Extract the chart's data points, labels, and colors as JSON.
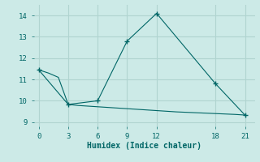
{
  "xlabel": "Humidex (Indice chaleur)",
  "bg_color": "#cceae7",
  "grid_color": "#b0d4d0",
  "line_color": "#006666",
  "line1_x": [
    0,
    1,
    2,
    3,
    4,
    5,
    6,
    7,
    8,
    9,
    10,
    11,
    12,
    13,
    14,
    15,
    16,
    17,
    18,
    19,
    20,
    21
  ],
  "line1_y": [
    11.45,
    11.3,
    11.1,
    9.83,
    9.78,
    9.75,
    9.72,
    9.69,
    9.66,
    9.63,
    9.6,
    9.57,
    9.54,
    9.51,
    9.48,
    9.46,
    9.44,
    9.42,
    9.4,
    9.38,
    9.36,
    9.33
  ],
  "line2_x": [
    0,
    3,
    6,
    9,
    12,
    18,
    21
  ],
  "line2_y": [
    11.45,
    9.83,
    10.0,
    12.8,
    14.1,
    10.8,
    9.33
  ],
  "xlim": [
    -0.5,
    22
  ],
  "ylim": [
    8.8,
    14.5
  ],
  "xticks": [
    0,
    3,
    6,
    9,
    12,
    18,
    21
  ],
  "yticks": [
    9,
    10,
    11,
    12,
    13,
    14
  ]
}
